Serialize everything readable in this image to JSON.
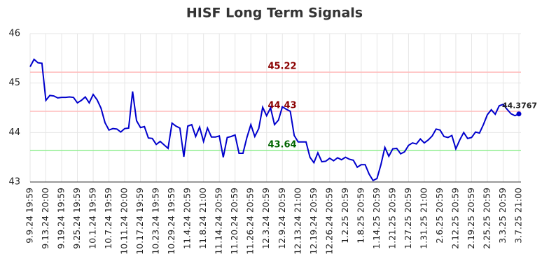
{
  "chart_data": {
    "type": "line",
    "title": "HISF Long Term Signals",
    "categories": [
      "9.9.24 19:59",
      null,
      null,
      null,
      "9.13.24 20:00",
      null,
      null,
      null,
      "9.19.24 19:59",
      null,
      null,
      null,
      "9.25.24 19:59",
      null,
      null,
      null,
      "10.1.24 19:59",
      null,
      null,
      null,
      "10.7.24 19:59",
      null,
      null,
      null,
      "10.11.24 20:00",
      null,
      null,
      null,
      "10.17.24 19:59",
      null,
      null,
      null,
      "10.23.24 19:59",
      null,
      null,
      null,
      "10.29.24 19:59",
      null,
      null,
      null,
      "11.4.24 20:59",
      null,
      null,
      null,
      "11.8.24 21:00",
      null,
      null,
      null,
      "11.14.24 20:59",
      null,
      null,
      null,
      "11.20.24 20:59",
      null,
      null,
      null,
      "11.26.24 20:59",
      null,
      null,
      null,
      "12.3.24 20:59",
      null,
      null,
      null,
      "12.9.24 20:59",
      null,
      null,
      null,
      "12.13.24 21:00",
      null,
      null,
      null,
      "12.19.24 20:59",
      null,
      null,
      null,
      "12.26.24 20:59",
      null,
      null,
      null,
      "1.2.25 20:59",
      null,
      null,
      null,
      "1.8.25 20:59",
      null,
      null,
      null,
      "1.14.25 20:59",
      null,
      null,
      null,
      "1.21.25 20:59",
      null,
      null,
      null,
      "1.27.25 20:59",
      null,
      null,
      null,
      "1.31.25 21:00",
      null,
      null,
      null,
      "2.6.25 20:59",
      null,
      null,
      null,
      "2.12.25 20:59",
      null,
      null,
      null,
      "2.19.25 20:59",
      null,
      null,
      null,
      "2.25.25 20:59",
      null,
      null,
      null,
      "3.3.25 20:59",
      null,
      null,
      null,
      "3.7.25 21:00"
    ],
    "series": [
      {
        "color": "#0000cc",
        "values": [
          45.33,
          45.48,
          45.41,
          45.4,
          44.65,
          44.75,
          44.74,
          44.7,
          44.71,
          44.71,
          44.72,
          44.71,
          44.6,
          44.65,
          44.72,
          44.6,
          44.77,
          44.66,
          44.49,
          44.2,
          44.05,
          44.08,
          44.07,
          44.01,
          44.08,
          44.09,
          44.83,
          44.24,
          44.1,
          44.12,
          43.89,
          43.88,
          43.76,
          43.82,
          43.75,
          43.68,
          44.19,
          44.13,
          44.09,
          43.51,
          44.13,
          44.16,
          43.92,
          44.11,
          43.82,
          44.09,
          43.91,
          43.91,
          43.93,
          43.5,
          43.9,
          43.92,
          43.95,
          43.58,
          43.58,
          43.9,
          44.16,
          43.92,
          44.08,
          44.51,
          44.34,
          44.5,
          44.16,
          44.25,
          44.52,
          44.47,
          44.43,
          43.94,
          43.81,
          43.81,
          43.81,
          43.5,
          43.39,
          43.59,
          43.41,
          43.42,
          43.48,
          43.43,
          43.49,
          43.45,
          43.5,
          43.46,
          43.44,
          43.3,
          43.35,
          43.35,
          43.16,
          43.03,
          43.07,
          43.35,
          43.7,
          43.52,
          43.67,
          43.68,
          43.57,
          43.61,
          43.74,
          43.79,
          43.77,
          43.87,
          43.79,
          43.85,
          43.93,
          44.07,
          44.05,
          43.92,
          43.9,
          43.94,
          43.67,
          43.85,
          44.0,
          43.88,
          43.9,
          44.01,
          43.99,
          44.16,
          44.36,
          44.46,
          44.37,
          44.54,
          44.57,
          44.47,
          44.38,
          44.34,
          44.3767
        ]
      }
    ],
    "hlines": [
      {
        "value": 45.22,
        "color": "#ffbbbb",
        "text_color": "#8b0000"
      },
      {
        "value": 44.43,
        "color": "#ffbbbb",
        "text_color": "#8b0000"
      },
      {
        "value": 43.64,
        "color": "#90ee90",
        "text_color": "#006400"
      }
    ],
    "ylim": [
      43,
      46
    ],
    "yticks": [
      43,
      44,
      45,
      46
    ],
    "grid": true
  }
}
